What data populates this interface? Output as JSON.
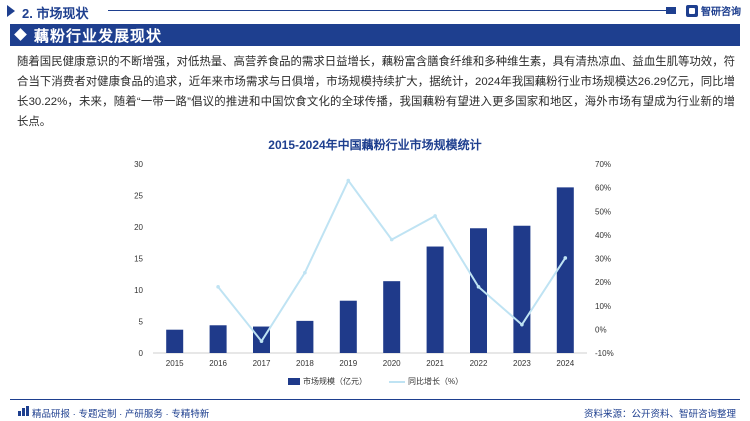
{
  "header": {
    "section_title": "2. 市场现状",
    "brand_name": "智研咨询"
  },
  "heading": {
    "title": "藕粉行业发展现状"
  },
  "body_text": "随着国民健康意识的不断增强，对低热量、高营养食品的需求日益增长，藕粉富含膳食纤维和多种维生素，具有清热凉血、益血生肌等功效，符合当下消费者对健康食品的追求，近年来市场需求与日俱增，市场规模持续扩大，据统计，2024年我国藕粉行业市场规模达26.29亿元，同比增长30.22%，未来，随着“一带一路”倡议的推进和中国饮食文化的全球传播，我国藕粉有望进入更多国家和地区，海外市场有望成为行业新的增长点。",
  "chart_data": {
    "type": "bar",
    "title": "2015-2024年中国藕粉行业市场规模统计",
    "categories": [
      "2015",
      "2016",
      "2017",
      "2018",
      "2019",
      "2020",
      "2021",
      "2022",
      "2023",
      "2024"
    ],
    "series": [
      {
        "name": "市场规模（亿元）",
        "type": "bar",
        "axis": "left",
        "values": [
          3.7,
          4.4,
          4.2,
          5.1,
          8.3,
          11.4,
          16.9,
          19.8,
          20.2,
          26.29
        ]
      },
      {
        "name": "同比增长（%）",
        "type": "line",
        "axis": "right",
        "values": [
          null,
          18,
          -5,
          24,
          63,
          38,
          48,
          18,
          2,
          30.22
        ]
      }
    ],
    "ylim_left": [
      0,
      30
    ],
    "yticks_left": [
      "0",
      "5",
      "10",
      "15",
      "20",
      "25",
      "30"
    ],
    "ylim_right": [
      -10,
      70
    ],
    "yticks_right": [
      "-10%",
      "0%",
      "10%",
      "20%",
      "30%",
      "40%",
      "50%",
      "60%",
      "70%"
    ],
    "legend_position": "bottom",
    "grid": false,
    "colors": {
      "bar": "#1f3a8a",
      "line": "#bfe3f3"
    }
  },
  "footer": {
    "left_text": "精品研报 · 专题定制 · 产研服务 · 专精特新",
    "right_text": "资料来源：公开资料、智研咨询整理"
  }
}
